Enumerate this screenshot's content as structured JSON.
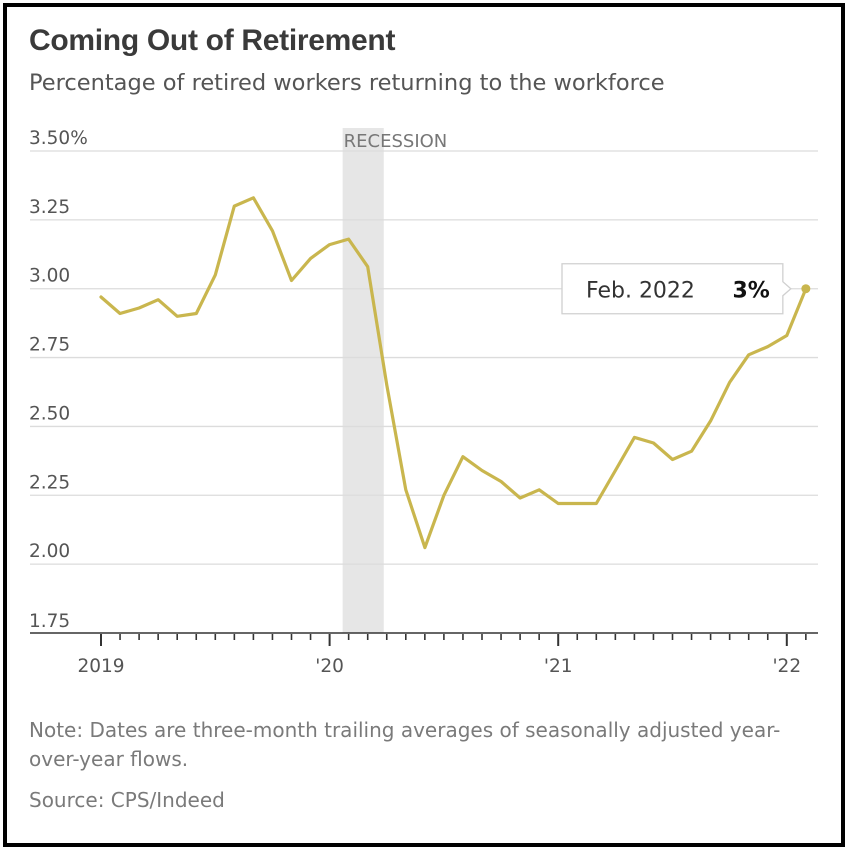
{
  "chart_data": {
    "type": "line",
    "title": "Coming Out of Retirement",
    "subtitle": "Percentage of retired workers returning to the workforce",
    "x_unit": "month index from Jan. 2019",
    "series": [
      {
        "color": "#c9b64e",
        "values": [
          2.97,
          2.91,
          2.93,
          2.96,
          2.9,
          2.91,
          3.05,
          3.3,
          3.33,
          3.21,
          3.03,
          3.11,
          3.16,
          3.18,
          3.08,
          2.65,
          2.27,
          2.06,
          2.25,
          2.39,
          2.34,
          2.3,
          2.24,
          2.27,
          2.22,
          2.22,
          2.22,
          2.34,
          2.46,
          2.44,
          2.38,
          2.41,
          2.52,
          2.66,
          2.76,
          2.79,
          2.83,
          3.0
        ]
      }
    ],
    "x_ticks": [
      {
        "month": 0,
        "label": "2019"
      },
      {
        "month": 12,
        "label": "'20"
      },
      {
        "month": 24,
        "label": "'21"
      },
      {
        "month": 36,
        "label": "'22"
      }
    ],
    "ylim": [
      1.75,
      3.5
    ],
    "y_ticks": [
      {
        "value": 3.5,
        "label": "3.50%"
      },
      {
        "value": 3.25,
        "label": "3.25"
      },
      {
        "value": 3.0,
        "label": "3.00"
      },
      {
        "value": 2.75,
        "label": "2.75"
      },
      {
        "value": 2.5,
        "label": "2.50"
      },
      {
        "value": 2.25,
        "label": "2.25"
      },
      {
        "value": 2.0,
        "label": "2.00"
      },
      {
        "value": 1.75,
        "label": "1.75"
      }
    ],
    "grid": true,
    "recession": {
      "label": "RECESSION",
      "start_month": 13,
      "end_month": 15
    },
    "callout": {
      "date": "Feb. 2022",
      "value": "3%",
      "month": 37
    }
  },
  "note": "Note: Dates are three-month trailing averages of seasonally adjusted year-over-year flows.",
  "source": "Source: CPS/Indeed",
  "colors": {
    "line": "#c9b64e",
    "recession_band": "#e6e6e6",
    "grid": "#dcdcdc",
    "axis": "#333333",
    "title": "#3a3a3a",
    "text": "#555555",
    "note": "#7a7a7a"
  }
}
